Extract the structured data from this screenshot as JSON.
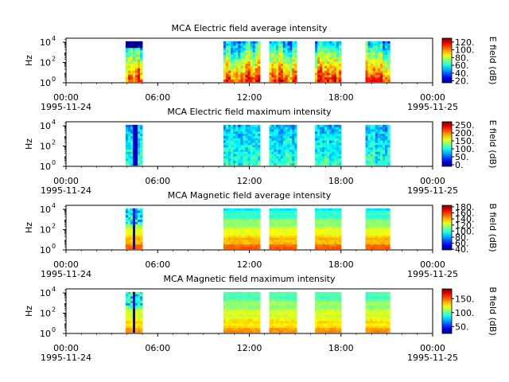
{
  "chart_data": [
    {
      "type": "heatmap",
      "title": "MCA  Electric field average intensity",
      "ylabel": "Hz",
      "colorbar_label": "E field (dB)",
      "colorbar_ticks": [
        "20.",
        "40.",
        "60.",
        "80.",
        "100.",
        "120."
      ],
      "colorbar_range": [
        15,
        130
      ],
      "yscale": "log",
      "ytick_labels": [
        "10",
        "10",
        "10"
      ],
      "ytick_exponents": [
        "0",
        "2",
        "4"
      ],
      "x_tick_labels": [
        "00:00",
        "06:00",
        "12:00",
        "18:00",
        "00:00"
      ],
      "date_labels": [
        "1995-11-24",
        "1995-11-25"
      ],
      "x_hours_range": [
        0,
        24
      ],
      "segments_hours": [
        [
          3.9,
          5.0
        ],
        [
          10.3,
          12.7
        ],
        [
          13.3,
          15.1
        ],
        [
          16.3,
          18.0
        ],
        [
          19.6,
          21.2
        ]
      ]
    },
    {
      "type": "heatmap",
      "title": "MCA  Electric field maximum intensity",
      "ylabel": "Hz",
      "colorbar_label": "E field (dB)",
      "colorbar_ticks": [
        "0.",
        "50.",
        "100.",
        "150.",
        "200.",
        "250."
      ],
      "colorbar_range": [
        -10,
        270
      ],
      "yscale": "log",
      "ytick_labels": [
        "10",
        "10",
        "10"
      ],
      "ytick_exponents": [
        "0",
        "2",
        "4"
      ],
      "x_tick_labels": [
        "00:00",
        "06:00",
        "12:00",
        "18:00",
        "00:00"
      ],
      "date_labels": [
        "1995-11-24",
        "1995-11-25"
      ],
      "x_hours_range": [
        0,
        24
      ],
      "segments_hours": [
        [
          3.9,
          5.0
        ],
        [
          10.3,
          12.7
        ],
        [
          13.3,
          15.1
        ],
        [
          16.3,
          18.0
        ],
        [
          19.6,
          21.2
        ]
      ]
    },
    {
      "type": "heatmap",
      "title": "MCA  Magnetic field average intensity",
      "ylabel": "Hz",
      "colorbar_label": "B field (dB)",
      "colorbar_ticks": [
        "40.",
        "60.",
        "80.",
        "100.",
        "120.",
        "140.",
        "160.",
        "180."
      ],
      "colorbar_range": [
        38,
        185
      ],
      "yscale": "log",
      "ytick_labels": [
        "10",
        "10",
        "10"
      ],
      "ytick_exponents": [
        "0",
        "2",
        "4"
      ],
      "x_tick_labels": [
        "00:00",
        "06:00",
        "12:00",
        "18:00",
        "00:00"
      ],
      "date_labels": [
        "1995-11-24",
        "1995-11-25"
      ],
      "x_hours_range": [
        0,
        24
      ],
      "segments_hours": [
        [
          3.9,
          5.0
        ],
        [
          10.3,
          12.7
        ],
        [
          13.3,
          15.1
        ],
        [
          16.3,
          18.0
        ],
        [
          19.6,
          21.2
        ]
      ]
    },
    {
      "type": "heatmap",
      "title": "MCA  Magnetic field maximum intensity",
      "ylabel": "Hz",
      "colorbar_label": "B field (dB)",
      "colorbar_ticks": [
        "50.",
        "100.",
        "150."
      ],
      "colorbar_range": [
        25,
        185
      ],
      "yscale": "log",
      "ytick_labels": [
        "10",
        "10",
        "10"
      ],
      "ytick_exponents": [
        "0",
        "2",
        "4"
      ],
      "x_tick_labels": [
        "00:00",
        "06:00",
        "12:00",
        "18:00",
        "00:00"
      ],
      "date_labels": [
        "1995-11-24",
        "1995-11-25"
      ],
      "x_hours_range": [
        0,
        24
      ],
      "segments_hours": [
        [
          3.9,
          5.0
        ],
        [
          10.3,
          12.7
        ],
        [
          13.3,
          15.1
        ],
        [
          16.3,
          18.0
        ],
        [
          19.6,
          21.2
        ]
      ]
    }
  ]
}
